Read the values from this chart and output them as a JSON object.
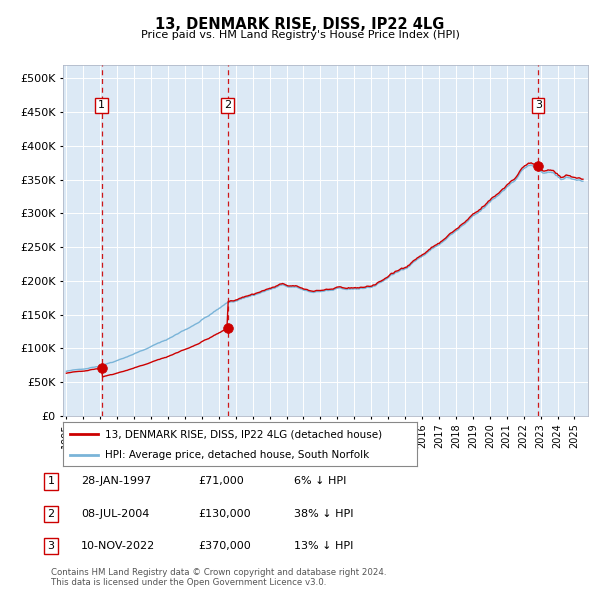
{
  "title": "13, DENMARK RISE, DISS, IP22 4LG",
  "subtitle": "Price paid vs. HM Land Registry's House Price Index (HPI)",
  "outer_bg_color": "#ffffff",
  "plot_bg_color": "#dce9f5",
  "hpi_color": "#7ab4d8",
  "price_color": "#cc0000",
  "xlim_start": 1994.8,
  "xlim_end": 2025.8,
  "ylim_min": 0,
  "ylim_max": 520000,
  "yticks": [
    0,
    50000,
    100000,
    150000,
    200000,
    250000,
    300000,
    350000,
    400000,
    450000,
    500000
  ],
  "ytick_labels": [
    "£0",
    "£50K",
    "£100K",
    "£150K",
    "£200K",
    "£250K",
    "£300K",
    "£350K",
    "£400K",
    "£450K",
    "£500K"
  ],
  "xticks": [
    1995,
    1996,
    1997,
    1998,
    1999,
    2000,
    2001,
    2002,
    2003,
    2004,
    2005,
    2006,
    2007,
    2008,
    2009,
    2010,
    2011,
    2012,
    2013,
    2014,
    2015,
    2016,
    2017,
    2018,
    2019,
    2020,
    2021,
    2022,
    2023,
    2024,
    2025
  ],
  "sale_dates": [
    1997.08,
    2004.52,
    2022.86
  ],
  "sale_prices": [
    71000,
    130000,
    370000
  ],
  "sale_labels": [
    "1",
    "2",
    "3"
  ],
  "legend_label_red": "13, DENMARK RISE, DISS, IP22 4LG (detached house)",
  "legend_label_blue": "HPI: Average price, detached house, South Norfolk",
  "table_data": [
    [
      "1",
      "28-JAN-1997",
      "£71,000",
      "6% ↓ HPI"
    ],
    [
      "2",
      "08-JUL-2004",
      "£130,000",
      "38% ↓ HPI"
    ],
    [
      "3",
      "10-NOV-2022",
      "£370,000",
      "13% ↓ HPI"
    ]
  ],
  "footer_text": "Contains HM Land Registry data © Crown copyright and database right 2024.\nThis data is licensed under the Open Government Licence v3.0."
}
